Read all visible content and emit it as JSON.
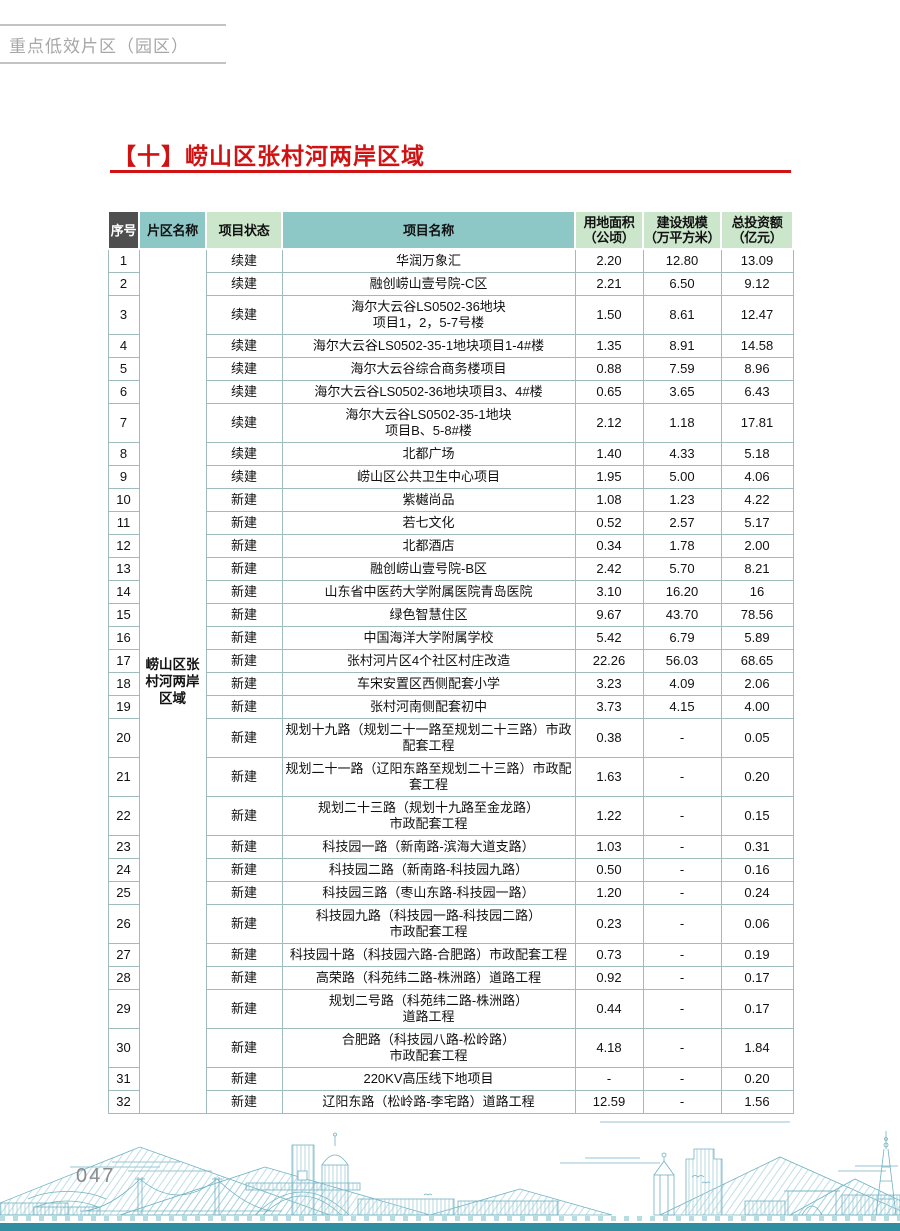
{
  "page": {
    "section_label": "重点低效片区（园区）",
    "title": "【十】崂山区张村河两岸区域",
    "page_number": "047"
  },
  "table": {
    "columns": [
      "序号",
      "片区名称",
      "项目状态",
      "项目名称",
      "用地面积\n（公顷）",
      "建设规模\n（万平方米）",
      "总投资额\n（亿元）"
    ],
    "district_name": "崂山区张村河两岸区域",
    "rows": [
      {
        "no": "1",
        "status": "续建",
        "name": "华润万象汇",
        "land": "2.20",
        "scale": "12.80",
        "investment": "13.09"
      },
      {
        "no": "2",
        "status": "续建",
        "name": "融创崂山壹号院-C区",
        "land": "2.21",
        "scale": "6.50",
        "investment": "9.12"
      },
      {
        "no": "3",
        "status": "续建",
        "name": "海尔大云谷LS0502-36地块\n项目1，2，5-7号楼",
        "land": "1.50",
        "scale": "8.61",
        "investment": "12.47"
      },
      {
        "no": "4",
        "status": "续建",
        "name": "海尔大云谷LS0502-35-1地块项目1-4#楼",
        "land": "1.35",
        "scale": "8.91",
        "investment": "14.58"
      },
      {
        "no": "5",
        "status": "续建",
        "name": "海尔大云谷综合商务楼项目",
        "land": "0.88",
        "scale": "7.59",
        "investment": "8.96"
      },
      {
        "no": "6",
        "status": "续建",
        "name": "海尔大云谷LS0502-36地块项目3、4#楼",
        "land": "0.65",
        "scale": "3.65",
        "investment": "6.43"
      },
      {
        "no": "7",
        "status": "续建",
        "name": "海尔大云谷LS0502-35-1地块\n项目B、5-8#楼",
        "land": "2.12",
        "scale": "1.18",
        "investment": "17.81"
      },
      {
        "no": "8",
        "status": "续建",
        "name": "北都广场",
        "land": "1.40",
        "scale": "4.33",
        "investment": "5.18"
      },
      {
        "no": "9",
        "status": "续建",
        "name": "崂山区公共卫生中心项目",
        "land": "1.95",
        "scale": "5.00",
        "investment": "4.06"
      },
      {
        "no": "10",
        "status": "新建",
        "name": "紫樾尚品",
        "land": "1.08",
        "scale": "1.23",
        "investment": "4.22"
      },
      {
        "no": "11",
        "status": "新建",
        "name": "若七文化",
        "land": "0.52",
        "scale": "2.57",
        "investment": "5.17"
      },
      {
        "no": "12",
        "status": "新建",
        "name": "北都酒店",
        "land": "0.34",
        "scale": "1.78",
        "investment": "2.00"
      },
      {
        "no": "13",
        "status": "新建",
        "name": "融创崂山壹号院-B区",
        "land": "2.42",
        "scale": "5.70",
        "investment": "8.21"
      },
      {
        "no": "14",
        "status": "新建",
        "name": "山东省中医药大学附属医院青岛医院",
        "land": "3.10",
        "scale": "16.20",
        "investment": "16"
      },
      {
        "no": "15",
        "status": "新建",
        "name": "绿色智慧住区",
        "land": "9.67",
        "scale": "43.70",
        "investment": "78.56"
      },
      {
        "no": "16",
        "status": "新建",
        "name": "中国海洋大学附属学校",
        "land": "5.42",
        "scale": "6.79",
        "investment": "5.89"
      },
      {
        "no": "17",
        "status": "新建",
        "name": "张村河片区4个社区村庄改造",
        "land": "22.26",
        "scale": "56.03",
        "investment": "68.65"
      },
      {
        "no": "18",
        "status": "新建",
        "name": "车宋安置区西侧配套小学",
        "land": "3.23",
        "scale": "4.09",
        "investment": "2.06"
      },
      {
        "no": "19",
        "status": "新建",
        "name": "张村河南侧配套初中",
        "land": "3.73",
        "scale": "4.15",
        "investment": "4.00"
      },
      {
        "no": "20",
        "status": "新建",
        "name": "规划十九路（规划二十一路至规划二十三路）市政配套工程",
        "land": "0.38",
        "scale": "-",
        "investment": "0.05"
      },
      {
        "no": "21",
        "status": "新建",
        "name": "规划二十一路（辽阳东路至规划二十三路）市政配套工程",
        "land": "1.63",
        "scale": "-",
        "investment": "0.20"
      },
      {
        "no": "22",
        "status": "新建",
        "name": "规划二十三路（规划十九路至金龙路）\n市政配套工程",
        "land": "1.22",
        "scale": "-",
        "investment": "0.15"
      },
      {
        "no": "23",
        "status": "新建",
        "name": "科技园一路（新南路-滨海大道支路）",
        "land": "1.03",
        "scale": "-",
        "investment": "0.31"
      },
      {
        "no": "24",
        "status": "新建",
        "name": "科技园二路（新南路-科技园九路）",
        "land": "0.50",
        "scale": "-",
        "investment": "0.16"
      },
      {
        "no": "25",
        "status": "新建",
        "name": "科技园三路（枣山东路-科技园一路）",
        "land": "1.20",
        "scale": "-",
        "investment": "0.24"
      },
      {
        "no": "26",
        "status": "新建",
        "name": "科技园九路（科技园一路-科技园二路）\n市政配套工程",
        "land": "0.23",
        "scale": "-",
        "investment": "0.06"
      },
      {
        "no": "27",
        "status": "新建",
        "name": "科技园十路（科技园六路-合肥路）市政配套工程",
        "land": "0.73",
        "scale": "-",
        "investment": "0.19"
      },
      {
        "no": "28",
        "status": "新建",
        "name": "高荣路（科苑纬二路-株洲路）道路工程",
        "land": "0.92",
        "scale": "-",
        "investment": "0.17"
      },
      {
        "no": "29",
        "status": "新建",
        "name": "规划二号路（科苑纬二路-株洲路）\n道路工程",
        "land": "0.44",
        "scale": "-",
        "investment": "0.17"
      },
      {
        "no": "30",
        "status": "新建",
        "name": "合肥路（科技园八路-松岭路）\n市政配套工程",
        "land": "4.18",
        "scale": "-",
        "investment": "1.84"
      },
      {
        "no": "31",
        "status": "新建",
        "name": "220KV高压线下地项目",
        "land": "-",
        "scale": "-",
        "investment": "0.20"
      },
      {
        "no": "32",
        "status": "新建",
        "name": "辽阳东路（松岭路-李宅路）道路工程",
        "land": "12.59",
        "scale": "-",
        "investment": "1.56"
      }
    ]
  },
  "colors": {
    "title_red": "#d11212",
    "header_dark": "#4f4f4f",
    "header_teal": "#8ec8c6",
    "header_green": "#cbe6cb",
    "table_border": "#9fbcbc",
    "section_label_gray": "#a7a7a7",
    "skyline_teal": "#4d9fb3",
    "bottom_bar_teal": "#2f8fa0"
  },
  "decorations": {
    "footer_art": "city-skyline-line-art"
  }
}
